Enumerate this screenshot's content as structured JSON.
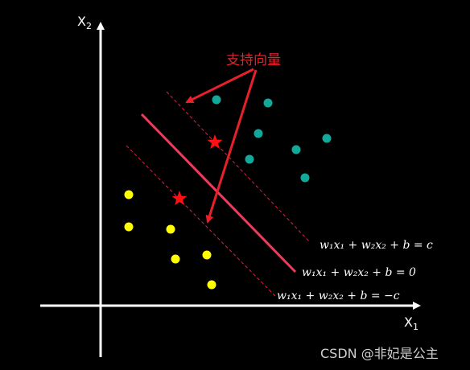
{
  "axes": {
    "x_label": "X1",
    "y_label": "X2"
  },
  "annotation": {
    "label": "支持向量"
  },
  "equations": {
    "upper": "w₁x₁ + w₂x₂ + b = c",
    "middle": "w₁x₁ + w₂x₂ + b = 0",
    "lower": "w₁x₁ + w₂x₂ + b = −c"
  },
  "watermark": "CSDN @非妃是公主",
  "colors": {
    "background": "#000000",
    "axis": "#ffffff",
    "teal_points": "#12a89a",
    "yellow_points": "#ffff00",
    "hyperplane": "#f03a5c",
    "margin_lines": "#e02040",
    "support_vector_star": "#ff1010",
    "annotation": "#e8202a"
  }
}
